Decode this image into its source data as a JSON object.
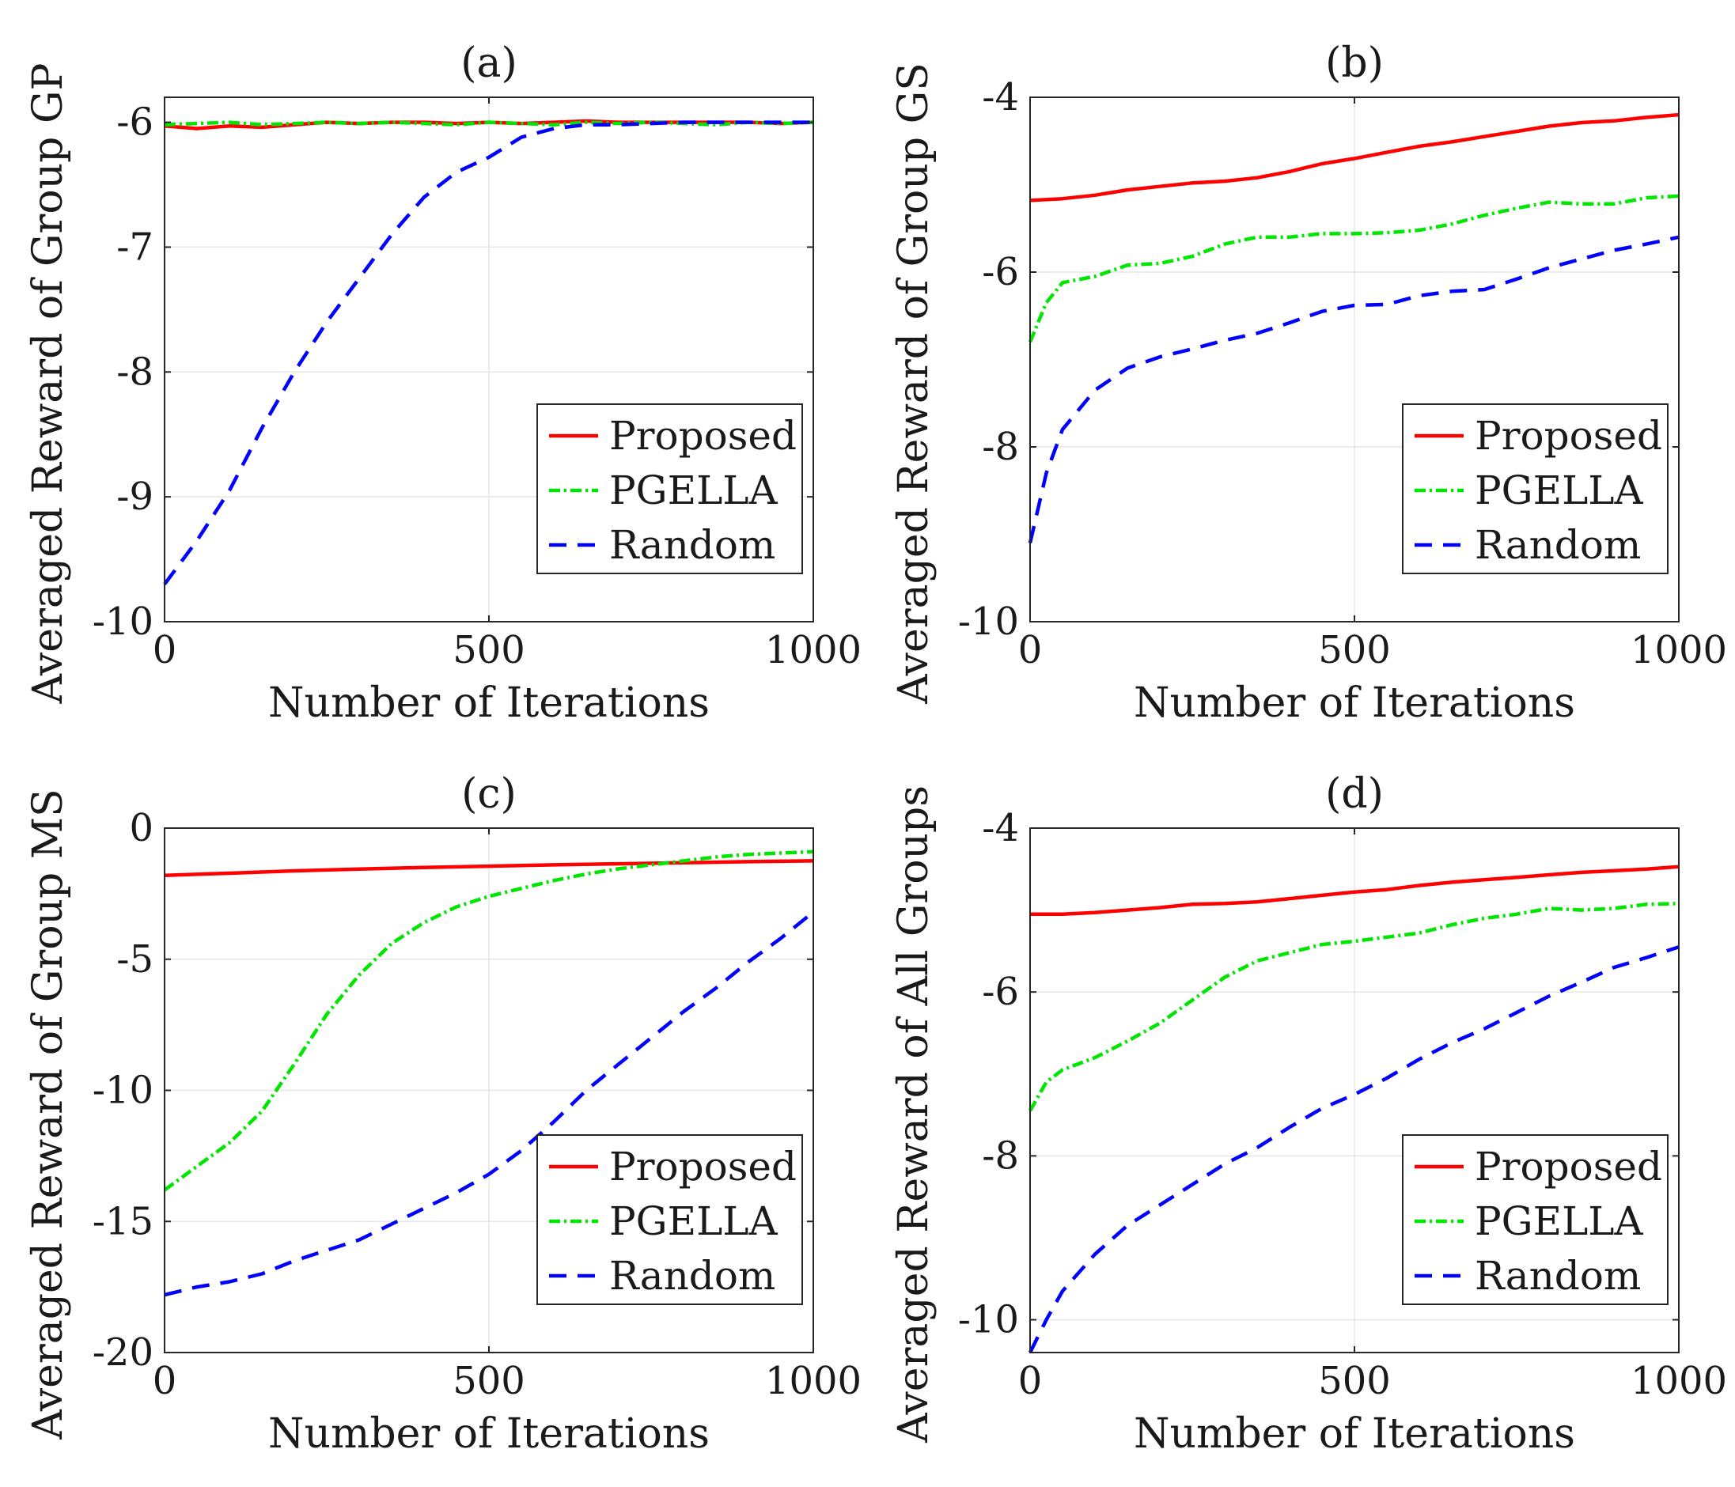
{
  "figure": {
    "x_tick_labels": [
      "0",
      "500",
      "1000"
    ]
  },
  "styles": {
    "Proposed": {
      "color": "#ff0000",
      "dash": ""
    },
    "PGELLA": {
      "color": "#00e600",
      "dash": "14 5 3 5"
    },
    "Random": {
      "color": "#0000ff",
      "dash": "22 14"
    }
  },
  "chart_data": [
    {
      "type": "line",
      "title": "(a)",
      "xlabel": "Number of Iterations",
      "ylabel": "Averaged Reward of Group GP",
      "xlim": [
        0,
        1000
      ],
      "ylim": [
        -10,
        -5.8
      ],
      "yticks": [
        -10,
        -9,
        -8,
        -7,
        -6
      ],
      "ytick_labels": [
        "-10",
        "-9",
        "-8",
        "-7",
        "-6"
      ],
      "legend_position": "lower-right",
      "series": [
        {
          "name": "Proposed",
          "x": [
            0,
            50,
            100,
            150,
            200,
            250,
            300,
            350,
            400,
            450,
            500,
            550,
            600,
            650,
            700,
            750,
            800,
            850,
            900,
            950,
            1000
          ],
          "y": [
            -6.03,
            -6.05,
            -6.03,
            -6.04,
            -6.02,
            -6.0,
            -6.01,
            -6.0,
            -6.0,
            -6.01,
            -6.0,
            -6.01,
            -6.0,
            -5.99,
            -6.0,
            -6.0,
            -6.0,
            -6.0,
            -6.0,
            -6.01,
            -6.0
          ]
        },
        {
          "name": "PGELLA",
          "x": [
            0,
            50,
            100,
            150,
            200,
            250,
            300,
            350,
            400,
            450,
            500,
            550,
            600,
            650,
            700,
            750,
            800,
            850,
            900,
            950,
            1000
          ],
          "y": [
            -6.02,
            -6.01,
            -6.0,
            -6.02,
            -6.01,
            -6.0,
            -6.01,
            -6.0,
            -6.01,
            -6.02,
            -6.0,
            -6.01,
            -6.02,
            -6.0,
            -6.01,
            -6.0,
            -6.01,
            -6.02,
            -6.0,
            -6.01,
            -6.0
          ]
        },
        {
          "name": "Random",
          "x": [
            0,
            50,
            100,
            150,
            200,
            250,
            300,
            350,
            400,
            450,
            500,
            550,
            600,
            650,
            700,
            750,
            800,
            850,
            900,
            950,
            1000
          ],
          "y": [
            -9.7,
            -9.35,
            -8.95,
            -8.45,
            -8.0,
            -7.6,
            -7.25,
            -6.9,
            -6.6,
            -6.4,
            -6.28,
            -6.12,
            -6.05,
            -6.02,
            -6.02,
            -6.01,
            -6.0,
            -6.0,
            -6.0,
            -6.0,
            -6.0
          ]
        }
      ]
    },
    {
      "type": "line",
      "title": "(b)",
      "xlabel": "Number of Iterations",
      "ylabel": "Averaged Reward of Group GS",
      "xlim": [
        0,
        1000
      ],
      "ylim": [
        -10,
        -4
      ],
      "yticks": [
        -10,
        -8,
        -6,
        -4
      ],
      "ytick_labels": [
        "-10",
        "-8",
        "-6",
        "-4"
      ],
      "legend_position": "lower-right",
      "series": [
        {
          "name": "Proposed",
          "x": [
            0,
            50,
            100,
            150,
            200,
            250,
            300,
            350,
            400,
            450,
            500,
            550,
            600,
            650,
            700,
            750,
            800,
            850,
            900,
            950,
            1000
          ],
          "y": [
            -5.18,
            -5.16,
            -5.12,
            -5.06,
            -5.02,
            -4.98,
            -4.96,
            -4.92,
            -4.85,
            -4.76,
            -4.7,
            -4.63,
            -4.56,
            -4.51,
            -4.45,
            -4.39,
            -4.33,
            -4.29,
            -4.27,
            -4.23,
            -4.2
          ]
        },
        {
          "name": "PGELLA",
          "x": [
            0,
            25,
            50,
            100,
            150,
            200,
            250,
            300,
            350,
            400,
            450,
            500,
            550,
            600,
            650,
            700,
            750,
            800,
            850,
            900,
            950,
            1000
          ],
          "y": [
            -6.8,
            -6.35,
            -6.12,
            -6.05,
            -5.92,
            -5.9,
            -5.82,
            -5.68,
            -5.6,
            -5.6,
            -5.56,
            -5.56,
            -5.55,
            -5.52,
            -5.45,
            -5.35,
            -5.27,
            -5.2,
            -5.22,
            -5.22,
            -5.15,
            -5.13
          ]
        },
        {
          "name": "Random",
          "x": [
            0,
            25,
            50,
            100,
            150,
            200,
            250,
            300,
            350,
            400,
            450,
            500,
            550,
            600,
            650,
            700,
            750,
            800,
            850,
            900,
            950,
            1000
          ],
          "y": [
            -9.1,
            -8.3,
            -7.8,
            -7.35,
            -7.1,
            -6.97,
            -6.88,
            -6.78,
            -6.7,
            -6.58,
            -6.45,
            -6.38,
            -6.37,
            -6.27,
            -6.22,
            -6.2,
            -6.08,
            -5.95,
            -5.85,
            -5.75,
            -5.68,
            -5.6
          ]
        }
      ]
    },
    {
      "type": "line",
      "title": "(c)",
      "xlabel": "Number of Iterations",
      "ylabel": "Averaged Reward of Group MS",
      "xlim": [
        0,
        1000
      ],
      "ylim": [
        -20,
        0
      ],
      "yticks": [
        -20,
        -15,
        -10,
        -5,
        0
      ],
      "ytick_labels": [
        "-20",
        "-15",
        "-10",
        "-5",
        "0"
      ],
      "legend_position": "lower-right",
      "series": [
        {
          "name": "Proposed",
          "x": [
            0,
            100,
            200,
            300,
            400,
            500,
            600,
            700,
            800,
            900,
            1000
          ],
          "y": [
            -1.8,
            -1.72,
            -1.63,
            -1.56,
            -1.5,
            -1.45,
            -1.4,
            -1.36,
            -1.32,
            -1.28,
            -1.25
          ]
        },
        {
          "name": "PGELLA",
          "x": [
            0,
            50,
            100,
            150,
            200,
            250,
            300,
            350,
            400,
            450,
            500,
            550,
            600,
            650,
            700,
            750,
            800,
            850,
            900,
            950,
            1000
          ],
          "y": [
            -13.8,
            -12.9,
            -12.0,
            -10.8,
            -9.0,
            -7.1,
            -5.6,
            -4.4,
            -3.6,
            -3.0,
            -2.6,
            -2.3,
            -2.0,
            -1.75,
            -1.55,
            -1.4,
            -1.25,
            -1.1,
            -1.0,
            -0.95,
            -0.9
          ]
        },
        {
          "name": "Random",
          "x": [
            0,
            50,
            100,
            150,
            200,
            250,
            300,
            350,
            400,
            450,
            500,
            550,
            600,
            650,
            700,
            750,
            800,
            850,
            900,
            950,
            1000
          ],
          "y": [
            -17.8,
            -17.5,
            -17.3,
            -17.0,
            -16.5,
            -16.1,
            -15.7,
            -15.1,
            -14.5,
            -13.9,
            -13.2,
            -12.3,
            -11.2,
            -10.0,
            -9.0,
            -8.0,
            -7.0,
            -6.1,
            -5.1,
            -4.2,
            -3.2
          ]
        }
      ]
    },
    {
      "type": "line",
      "title": "(d)",
      "xlabel": "Number of Iterations",
      "ylabel": "Averaged Reward of All Groups",
      "xlim": [
        0,
        1000
      ],
      "ylim": [
        -10.4,
        -4
      ],
      "yticks": [
        -10,
        -8,
        -6,
        -4
      ],
      "ytick_labels": [
        "-10",
        "-8",
        "-6",
        "-4"
      ],
      "legend_position": "lower-right",
      "series": [
        {
          "name": "Proposed",
          "x": [
            0,
            50,
            100,
            150,
            200,
            250,
            300,
            350,
            400,
            450,
            500,
            550,
            600,
            650,
            700,
            750,
            800,
            850,
            900,
            950,
            1000
          ],
          "y": [
            -5.05,
            -5.05,
            -5.03,
            -5.0,
            -4.97,
            -4.93,
            -4.92,
            -4.9,
            -4.86,
            -4.82,
            -4.78,
            -4.75,
            -4.7,
            -4.66,
            -4.63,
            -4.6,
            -4.57,
            -4.54,
            -4.52,
            -4.5,
            -4.47
          ]
        },
        {
          "name": "PGELLA",
          "x": [
            0,
            25,
            50,
            100,
            150,
            200,
            250,
            300,
            350,
            400,
            450,
            500,
            550,
            600,
            650,
            700,
            750,
            800,
            850,
            900,
            950,
            1000
          ],
          "y": [
            -7.45,
            -7.1,
            -6.95,
            -6.8,
            -6.6,
            -6.38,
            -6.1,
            -5.82,
            -5.62,
            -5.52,
            -5.42,
            -5.38,
            -5.33,
            -5.28,
            -5.18,
            -5.1,
            -5.05,
            -4.98,
            -5.0,
            -4.98,
            -4.93,
            -4.92
          ]
        },
        {
          "name": "Random",
          "x": [
            0,
            25,
            50,
            100,
            150,
            200,
            250,
            300,
            350,
            400,
            450,
            500,
            550,
            600,
            650,
            700,
            750,
            800,
            850,
            900,
            950,
            1000
          ],
          "y": [
            -10.4,
            -10.0,
            -9.65,
            -9.2,
            -8.85,
            -8.6,
            -8.35,
            -8.1,
            -7.9,
            -7.65,
            -7.42,
            -7.25,
            -7.05,
            -6.82,
            -6.62,
            -6.45,
            -6.25,
            -6.05,
            -5.88,
            -5.7,
            -5.58,
            -5.45
          ]
        }
      ]
    }
  ]
}
